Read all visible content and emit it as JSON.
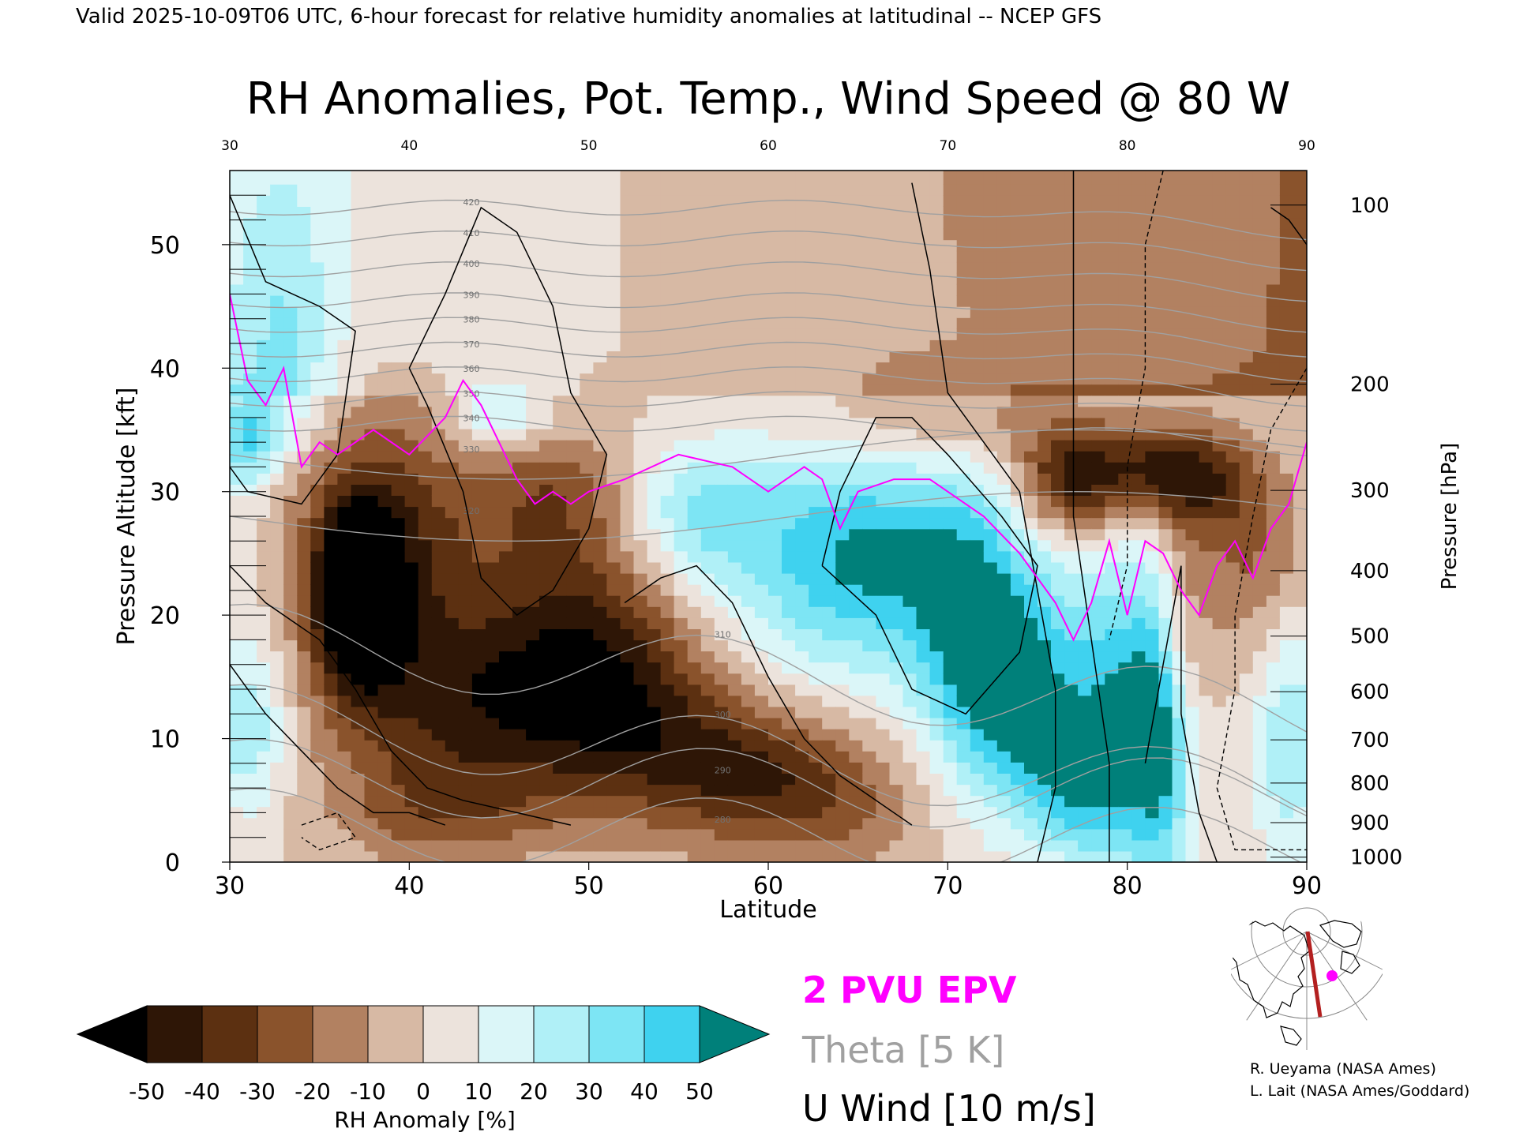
{
  "header": "Valid 2025-10-09T06 UTC, 6-hour forecast for relative humidity anomalies at latitudinal -- NCEP GFS",
  "colors": {
    "epv": "#ff00ff",
    "theta": "#a0a0a0",
    "uwind": "#000000",
    "rh_ramp": [
      "#000000",
      "#2e1606",
      "#5c3011",
      "#8a532c",
      "#b28161",
      "#d7b9a4",
      "#ece3dc",
      "#dbf6f8",
      "#b0f0f7",
      "#7de5f4",
      "#3fd2ef",
      "#10a9cf",
      "#0a7fa0",
      "#00807a"
    ]
  },
  "chart_data": {
    "type": "heatmap",
    "title": "RH Anomalies, Pot. Temp., Wind Speed @ 80 W",
    "xlabel": "Latitude",
    "ylabel": "Pressure Altitude [kft]",
    "ylabel_right": "Pressure [hPa]",
    "xlim": [
      30,
      90
    ],
    "ylim": [
      0,
      56
    ],
    "x_ticks": [
      30,
      40,
      50,
      60,
      70,
      80,
      90
    ],
    "y_ticks": [
      0,
      10,
      20,
      30,
      40,
      50
    ],
    "pressure_ticks": [
      {
        "label": "100",
        "kft": 53.2
      },
      {
        "label": "200",
        "kft": 38.7
      },
      {
        "label": "300",
        "kft": 30.1
      },
      {
        "label": "400",
        "kft": 23.6
      },
      {
        "label": "500",
        "kft": 18.3
      },
      {
        "label": "600",
        "kft": 13.8
      },
      {
        "label": "700",
        "kft": 9.9
      },
      {
        "label": "800",
        "kft": 6.4
      },
      {
        "label": "900",
        "kft": 3.2
      },
      {
        "label": "1000",
        "kft": 0.4
      }
    ],
    "colorbar": {
      "label": "RH Anomaly [%]",
      "ticks": [
        "-50",
        "-40",
        "-30",
        "-20",
        "-10",
        "0",
        "10",
        "20",
        "30",
        "40",
        "50"
      ]
    },
    "legend": {
      "epv": "2 PVU EPV",
      "theta": "Theta [5 K]",
      "uwind": "U Wind [10 m/s]"
    },
    "theta_levels": [
      280,
      290,
      300,
      310,
      320,
      330,
      340,
      350,
      360,
      370,
      380,
      390,
      400,
      410,
      420
    ],
    "epv_2pvu": [
      {
        "lat": 30,
        "kft": 46
      },
      {
        "lat": 31,
        "kft": 39
      },
      {
        "lat": 32,
        "kft": 37
      },
      {
        "lat": 33,
        "kft": 40
      },
      {
        "lat": 34,
        "kft": 32
      },
      {
        "lat": 35,
        "kft": 34
      },
      {
        "lat": 36,
        "kft": 33
      },
      {
        "lat": 38,
        "kft": 35
      },
      {
        "lat": 40,
        "kft": 33
      },
      {
        "lat": 42,
        "kft": 36
      },
      {
        "lat": 43,
        "kft": 39
      },
      {
        "lat": 44,
        "kft": 37
      },
      {
        "lat": 45,
        "kft": 34
      },
      {
        "lat": 46,
        "kft": 31
      },
      {
        "lat": 47,
        "kft": 29
      },
      {
        "lat": 48,
        "kft": 30
      },
      {
        "lat": 49,
        "kft": 29
      },
      {
        "lat": 50,
        "kft": 30
      },
      {
        "lat": 52,
        "kft": 31
      },
      {
        "lat": 55,
        "kft": 33
      },
      {
        "lat": 58,
        "kft": 32
      },
      {
        "lat": 60,
        "kft": 30
      },
      {
        "lat": 62,
        "kft": 32
      },
      {
        "lat": 63,
        "kft": 31
      },
      {
        "lat": 64,
        "kft": 27
      },
      {
        "lat": 65,
        "kft": 30
      },
      {
        "lat": 67,
        "kft": 31
      },
      {
        "lat": 69,
        "kft": 31
      },
      {
        "lat": 72,
        "kft": 28
      },
      {
        "lat": 74,
        "kft": 25
      },
      {
        "lat": 76,
        "kft": 21
      },
      {
        "lat": 77,
        "kft": 18
      },
      {
        "lat": 78,
        "kft": 21
      },
      {
        "lat": 79,
        "kft": 26
      },
      {
        "lat": 80,
        "kft": 20
      },
      {
        "lat": 81,
        "kft": 26
      },
      {
        "lat": 82,
        "kft": 25
      },
      {
        "lat": 83,
        "kft": 22
      },
      {
        "lat": 84,
        "kft": 20
      },
      {
        "lat": 85,
        "kft": 24
      },
      {
        "lat": 86,
        "kft": 26
      },
      {
        "lat": 87,
        "kft": 23
      },
      {
        "lat": 88,
        "kft": 27
      },
      {
        "lat": 89,
        "kft": 29
      },
      {
        "lat": 90,
        "kft": 34
      }
    ],
    "uwind_10ms_contours": [
      [
        {
          "lat": 30,
          "kft": 54
        },
        {
          "lat": 32,
          "kft": 47
        },
        {
          "lat": 35,
          "kft": 45
        },
        {
          "lat": 37,
          "kft": 43
        },
        {
          "lat": 36,
          "kft": 33
        },
        {
          "lat": 34,
          "kft": 29
        },
        {
          "lat": 31,
          "kft": 30
        },
        {
          "lat": 30,
          "kft": 32
        }
      ],
      [
        {
          "lat": 30,
          "kft": 24
        },
        {
          "lat": 32,
          "kft": 21
        },
        {
          "lat": 35,
          "kft": 18
        },
        {
          "lat": 37,
          "kft": 14
        },
        {
          "lat": 39,
          "kft": 9
        },
        {
          "lat": 41,
          "kft": 6
        },
        {
          "lat": 43,
          "kft": 5
        },
        {
          "lat": 46,
          "kft": 4
        },
        {
          "lat": 49,
          "kft": 3
        }
      ],
      [
        {
          "lat": 30,
          "kft": 16
        },
        {
          "lat": 32,
          "kft": 12
        },
        {
          "lat": 34,
          "kft": 9
        },
        {
          "lat": 36,
          "kft": 6
        },
        {
          "lat": 38,
          "kft": 4
        },
        {
          "lat": 40,
          "kft": 4
        },
        {
          "lat": 42,
          "kft": 3
        }
      ],
      [
        {
          "lat": 40,
          "kft": 40
        },
        {
          "lat": 42,
          "kft": 46
        },
        {
          "lat": 44,
          "kft": 53
        },
        {
          "lat": 46,
          "kft": 51
        },
        {
          "lat": 48,
          "kft": 45
        },
        {
          "lat": 49,
          "kft": 38
        },
        {
          "lat": 51,
          "kft": 33
        },
        {
          "lat": 50,
          "kft": 27
        },
        {
          "lat": 48,
          "kft": 22
        },
        {
          "lat": 46,
          "kft": 20
        },
        {
          "lat": 44,
          "kft": 23
        },
        {
          "lat": 43,
          "kft": 30
        },
        {
          "lat": 41,
          "kft": 37
        },
        {
          "lat": 40,
          "kft": 40
        }
      ],
      [
        {
          "lat": 52,
          "kft": 21
        },
        {
          "lat": 54,
          "kft": 23
        },
        {
          "lat": 56,
          "kft": 24
        },
        {
          "lat": 58,
          "kft": 21
        },
        {
          "lat": 60,
          "kft": 15
        },
        {
          "lat": 62,
          "kft": 10
        },
        {
          "lat": 64,
          "kft": 7
        },
        {
          "lat": 66,
          "kft": 5
        },
        {
          "lat": 68,
          "kft": 3
        }
      ],
      [
        {
          "lat": 63,
          "kft": 24
        },
        {
          "lat": 64,
          "kft": 30
        },
        {
          "lat": 66,
          "kft": 36
        },
        {
          "lat": 68,
          "kft": 36
        },
        {
          "lat": 70,
          "kft": 33
        },
        {
          "lat": 73,
          "kft": 28
        },
        {
          "lat": 75,
          "kft": 24
        },
        {
          "lat": 74,
          "kft": 17
        },
        {
          "lat": 71,
          "kft": 12
        },
        {
          "lat": 68,
          "kft": 14
        },
        {
          "lat": 66,
          "kft": 20
        },
        {
          "lat": 63,
          "kft": 24
        }
      ],
      [
        {
          "lat": 68,
          "kft": 55
        },
        {
          "lat": 69,
          "kft": 48
        },
        {
          "lat": 70,
          "kft": 38
        },
        {
          "lat": 72,
          "kft": 34
        },
        {
          "lat": 74,
          "kft": 30
        },
        {
          "lat": 75,
          "kft": 22
        },
        {
          "lat": 76,
          "kft": 14
        },
        {
          "lat": 76,
          "kft": 6
        },
        {
          "lat": 75,
          "kft": 0
        }
      ],
      [
        {
          "lat": 77,
          "kft": 56
        },
        {
          "lat": 77,
          "kft": 40
        },
        {
          "lat": 77,
          "kft": 28
        },
        {
          "lat": 78,
          "kft": 18
        },
        {
          "lat": 79,
          "kft": 8
        },
        {
          "lat": 79,
          "kft": 0
        }
      ],
      [
        {
          "lat": 81,
          "kft": 8
        },
        {
          "lat": 82,
          "kft": 16
        },
        {
          "lat": 83,
          "kft": 24
        },
        {
          "lat": 83,
          "kft": 12
        },
        {
          "lat": 84,
          "kft": 4
        },
        {
          "lat": 85,
          "kft": 0
        }
      ],
      [
        {
          "lat": 88,
          "kft": 53
        },
        {
          "lat": 89,
          "kft": 52
        },
        {
          "lat": 90,
          "kft": 50
        }
      ]
    ],
    "uwind_neg_contours": [
      [
        {
          "lat": 82,
          "kft": 56
        },
        {
          "lat": 81,
          "kft": 50
        },
        {
          "lat": 81,
          "kft": 40
        },
        {
          "lat": 80,
          "kft": 32
        },
        {
          "lat": 80,
          "kft": 24
        },
        {
          "lat": 79,
          "kft": 18
        }
      ],
      [
        {
          "lat": 90,
          "kft": 40
        },
        {
          "lat": 88,
          "kft": 35
        },
        {
          "lat": 87,
          "kft": 28
        },
        {
          "lat": 86,
          "kft": 20
        },
        {
          "lat": 86,
          "kft": 14
        },
        {
          "lat": 85,
          "kft": 6
        },
        {
          "lat": 86,
          "kft": 1
        },
        {
          "lat": 90,
          "kft": 1
        }
      ],
      [
        {
          "lat": 34,
          "kft": 3
        },
        {
          "lat": 36,
          "kft": 4
        },
        {
          "lat": 37,
          "kft": 2
        },
        {
          "lat": 35,
          "kft": 1
        },
        {
          "lat": 34,
          "kft": 2
        }
      ]
    ]
  },
  "inset_map": {
    "section_label": "80 W"
  },
  "credits": {
    "line1": "R. Ueyama (NASA Ames)",
    "line2": "L. Lait (NASA Ames/Goddard)"
  }
}
